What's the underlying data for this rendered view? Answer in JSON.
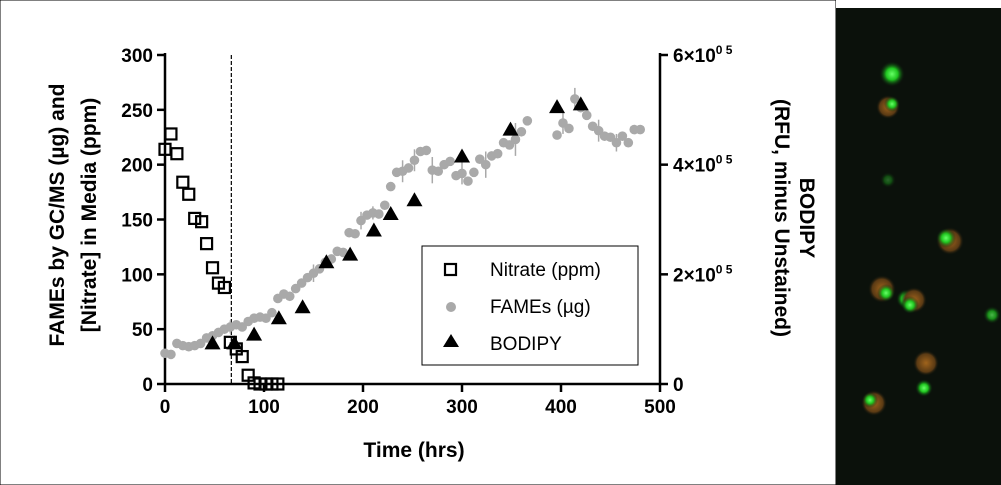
{
  "chart_data": {
    "type": "scatter",
    "xlabel": "Time (hrs)",
    "ylabel": "FAMEs by GC/MS (µg) and [Nitrate] in Media (ppm)",
    "ylabel_lines": [
      "FAMEs by GC/MS (µg) and",
      "[Nitrate] in Media (ppm)"
    ],
    "y2label_lines": [
      "BODIPY",
      "(RFU, minus Unstained)"
    ],
    "xlim": [
      0,
      500
    ],
    "ylim": [
      0,
      300
    ],
    "y2lim": [
      0,
      600000
    ],
    "x_ticks": [
      "0",
      "100",
      "200",
      "300",
      "400",
      "500"
    ],
    "y_ticks": [
      "0",
      "50",
      "100",
      "150",
      "200",
      "250",
      "300"
    ],
    "y2_ticks": [
      {
        "mantissa": "0",
        "exp": ""
      },
      {
        "mantissa": "2×10",
        "exp": "0 5"
      },
      {
        "mantissa": "4×10",
        "exp": "0 5"
      },
      {
        "mantissa": "6×10",
        "exp": "0 5"
      }
    ],
    "vline_x": 67,
    "legend": {
      "position": "lower-right",
      "entries": [
        "Nitrate (ppm)",
        "FAMEs (µg)",
        "BODIPY"
      ]
    },
    "series": [
      {
        "name": "Nitrate (ppm)",
        "axis": "left",
        "marker": "open-square",
        "color": "#000000",
        "points": [
          [
            0,
            214
          ],
          [
            6,
            228
          ],
          [
            12,
            210
          ],
          [
            18,
            184
          ],
          [
            24,
            173
          ],
          [
            30,
            151
          ],
          [
            37,
            148
          ],
          [
            42,
            128
          ],
          [
            48,
            106
          ],
          [
            54,
            92
          ],
          [
            60,
            88
          ],
          [
            66,
            38
          ],
          [
            72,
            32
          ],
          [
            78,
            25
          ],
          [
            84,
            8
          ],
          [
            90,
            1
          ],
          [
            96,
            0
          ],
          [
            102,
            0
          ],
          [
            108,
            0
          ],
          [
            114,
            0
          ]
        ]
      },
      {
        "name": "FAMEs (µg)",
        "axis": "left",
        "marker": "circle",
        "color": "#a9a9a9",
        "points": [
          [
            0,
            28
          ],
          [
            6,
            27
          ],
          [
            12,
            37
          ],
          [
            18,
            35
          ],
          [
            24,
            34
          ],
          [
            30,
            35
          ],
          [
            36,
            37
          ],
          [
            42,
            42
          ],
          [
            48,
            44
          ],
          [
            54,
            47
          ],
          [
            60,
            50
          ],
          [
            66,
            52
          ],
          [
            72,
            54
          ],
          [
            78,
            52
          ],
          [
            84,
            57
          ],
          [
            90,
            60
          ],
          [
            96,
            61
          ],
          [
            102,
            60
          ],
          [
            108,
            65
          ],
          [
            114,
            78
          ],
          [
            120,
            82
          ],
          [
            126,
            80
          ],
          [
            132,
            87
          ],
          [
            138,
            92
          ],
          [
            144,
            97
          ],
          [
            150,
            101
          ],
          [
            156,
            105
          ],
          [
            162,
            111
          ],
          [
            168,
            114
          ],
          [
            174,
            121
          ],
          [
            180,
            120
          ],
          [
            186,
            138
          ],
          [
            192,
            137
          ],
          [
            198,
            149
          ],
          [
            204,
            154
          ],
          [
            210,
            156
          ],
          [
            216,
            155
          ],
          [
            222,
            163
          ],
          [
            228,
            180
          ],
          [
            234,
            193
          ],
          [
            240,
            194
          ],
          [
            246,
            197
          ],
          [
            252,
            204
          ],
          [
            258,
            212
          ],
          [
            264,
            213
          ],
          [
            270,
            195
          ],
          [
            276,
            194
          ],
          [
            282,
            200
          ],
          [
            288,
            203
          ],
          [
            294,
            190
          ],
          [
            300,
            192
          ],
          [
            306,
            185
          ],
          [
            312,
            193
          ],
          [
            318,
            205
          ],
          [
            324,
            200
          ],
          [
            330,
            208
          ],
          [
            336,
            210
          ],
          [
            342,
            220
          ],
          [
            348,
            218
          ],
          [
            354,
            223
          ],
          [
            360,
            230
          ],
          [
            366,
            240
          ],
          [
            396,
            227
          ],
          [
            402,
            238
          ],
          [
            408,
            233
          ],
          [
            414,
            260
          ],
          [
            420,
            252
          ],
          [
            426,
            245
          ],
          [
            432,
            235
          ],
          [
            438,
            231
          ],
          [
            444,
            226
          ],
          [
            450,
            225
          ],
          [
            456,
            220
          ],
          [
            462,
            226
          ],
          [
            468,
            220
          ],
          [
            474,
            232
          ],
          [
            480,
            232
          ]
        ],
        "error_bars": [
          [
            66,
            6
          ],
          [
            150,
            8
          ],
          [
            198,
            8
          ],
          [
            210,
            6
          ],
          [
            240,
            10
          ],
          [
            252,
            10
          ],
          [
            270,
            12
          ],
          [
            300,
            10
          ],
          [
            324,
            12
          ],
          [
            354,
            15
          ],
          [
            402,
            10
          ],
          [
            414,
            10
          ],
          [
            438,
            10
          ],
          [
            456,
            8
          ]
        ]
      },
      {
        "name": "BODIPY",
        "axis": "right",
        "marker": "filled-triangle",
        "color": "#000000",
        "points": [
          [
            48,
            74000
          ],
          [
            70,
            74000
          ],
          [
            90,
            90000
          ],
          [
            115,
            120000
          ],
          [
            139,
            140000
          ],
          [
            163,
            222000
          ],
          [
            187,
            236000
          ],
          [
            211,
            280000
          ],
          [
            228,
            310000
          ],
          [
            252,
            335000
          ],
          [
            300,
            415000
          ],
          [
            349,
            464000
          ],
          [
            396,
            505000
          ],
          [
            420,
            510000
          ]
        ]
      }
    ]
  }
}
